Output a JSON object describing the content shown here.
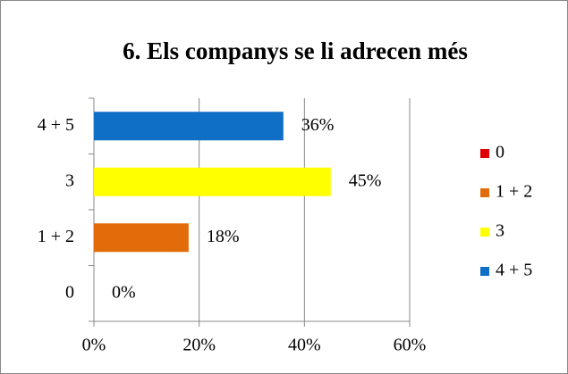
{
  "chart_data": {
    "type": "hbar",
    "title": "6. Els companys se li adrecen més",
    "categories": [
      "0",
      "1 + 2",
      "3",
      "4 + 5"
    ],
    "values": [
      0,
      18,
      45,
      36
    ],
    "value_labels": [
      "0%",
      "18%",
      "45%",
      "36%"
    ],
    "colors": [
      "#e00000",
      "#e36c0a",
      "#ffff00",
      "#0f6fc6"
    ],
    "xlim": [
      0,
      60
    ],
    "xticks": [
      {
        "value": 0,
        "label": "0%"
      },
      {
        "value": 20,
        "label": "20%"
      },
      {
        "value": 40,
        "label": "40%"
      },
      {
        "value": 60,
        "label": "60%"
      }
    ],
    "grid": true,
    "legend": "right"
  }
}
